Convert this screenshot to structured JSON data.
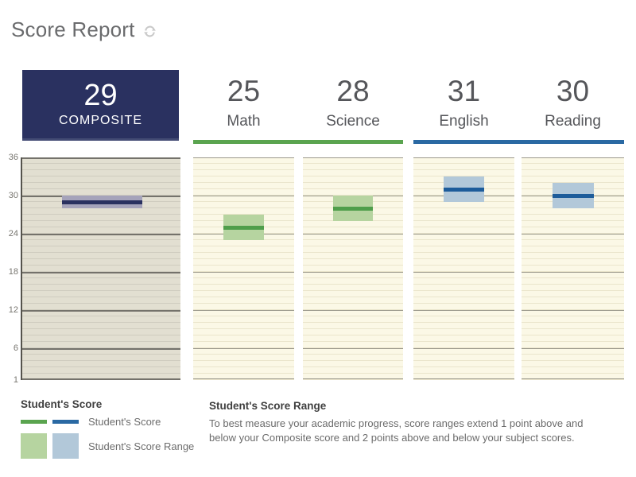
{
  "header": {
    "title": "Score Report"
  },
  "chart_data": {
    "type": "range-bar",
    "title": "Score Report",
    "axis": {
      "min": 1,
      "max": 36,
      "ticks": [
        36,
        30,
        24,
        18,
        12,
        6,
        1
      ],
      "grid": "minor lines every 1 point, major lines at ticks"
    },
    "subjects": [
      {
        "label": "COMPOSITE",
        "score": 29,
        "range_low": 28,
        "range_high": 30,
        "theme": "navy"
      },
      {
        "label": "Math",
        "score": 25,
        "range_low": 23,
        "range_high": 27,
        "theme": "green"
      },
      {
        "label": "Science",
        "score": 28,
        "range_low": 26,
        "range_high": 30,
        "theme": "green"
      },
      {
        "label": "English",
        "score": 31,
        "range_low": 29,
        "range_high": 33,
        "theme": "blue"
      },
      {
        "label": "Reading",
        "score": 30,
        "range_low": 28,
        "range_high": 32,
        "theme": "blue"
      }
    ]
  },
  "legend": {
    "title": "Student's Score",
    "score_label": "Student's Score",
    "range_label": "Student's Score Range"
  },
  "description": {
    "title": "Student's Score Range",
    "body": "To best measure your academic progress, score ranges extend 1 point above and below your Composite score and 2 points above and below your subject scores."
  },
  "icons": {
    "refresh": "refresh-icon"
  },
  "colors": {
    "navy": "#2a3160",
    "navy-band": "#a5a3ba",
    "green-bar": "#5aa44f",
    "green-line": "#4f9e4b",
    "green-band": "#b6d4a0",
    "blue-bar": "#2a69a3",
    "blue-line": "#1d5c9a",
    "blue-band": "#b2c8d9",
    "composite-col-bg": "#e2dfd1",
    "composite-grid-minor": "#cfccbf",
    "composite-grid-major": "#74726b",
    "subject-col-bg": "#fbf8e6",
    "subject-grid-minor": "#eae5cc",
    "subject-grid-major": "#9b998c"
  }
}
